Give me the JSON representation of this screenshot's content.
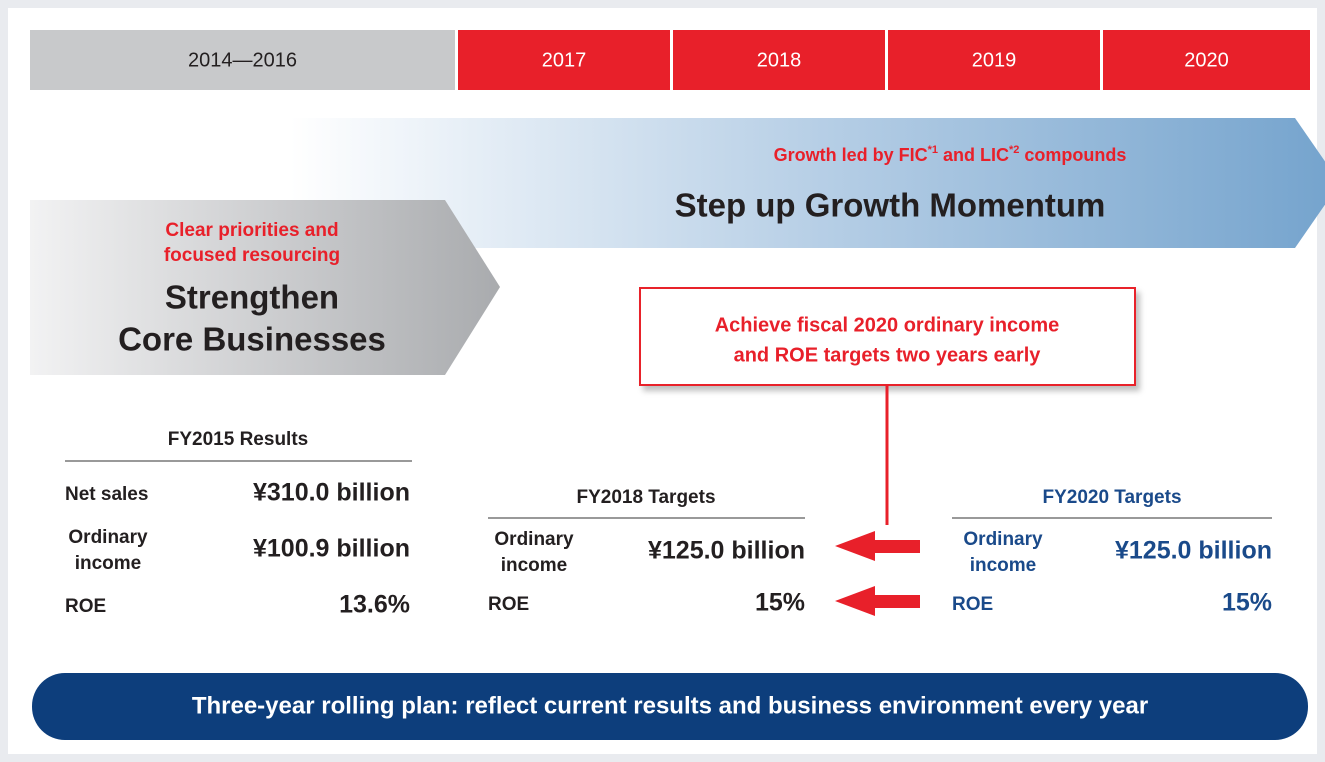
{
  "timeline": [
    "2014—2016",
    "2017",
    "2018",
    "2019",
    "2020"
  ],
  "core": {
    "note": [
      "Clear priorities and",
      "focused resourcing"
    ],
    "title": [
      "Strengthen",
      "Core Businesses"
    ]
  },
  "growth": {
    "note": [
      "Growth led by FIC",
      "*1",
      " and LIC",
      "*2",
      " compounds"
    ],
    "title": "Step up Growth Momentum"
  },
  "callout": [
    "Achieve fiscal 2020 ordinary income",
    "and ROE targets two years early"
  ],
  "results": {
    "title": "FY2015 Results",
    "rows": [
      {
        "label": [
          "Net sales"
        ],
        "value": "¥310.0 billion"
      },
      {
        "label": [
          "Ordinary",
          "income"
        ],
        "value": "¥100.9 billion"
      },
      {
        "label": [
          "ROE"
        ],
        "value": "13.6%"
      }
    ]
  },
  "targets_2018": {
    "title": "FY2018 Targets",
    "rows": [
      {
        "label": [
          "Ordinary",
          "income"
        ],
        "value": "¥125.0 billion"
      },
      {
        "label": [
          "ROE"
        ],
        "value": "15%"
      }
    ]
  },
  "targets_2020": {
    "title": "FY2020 Targets",
    "rows": [
      {
        "label": [
          "Ordinary",
          "income"
        ],
        "value": "¥125.0 billion"
      },
      {
        "label": [
          "ROE"
        ],
        "value": "15%"
      }
    ]
  },
  "footer": "Three-year rolling plan: reflect current results and business environment every year"
}
